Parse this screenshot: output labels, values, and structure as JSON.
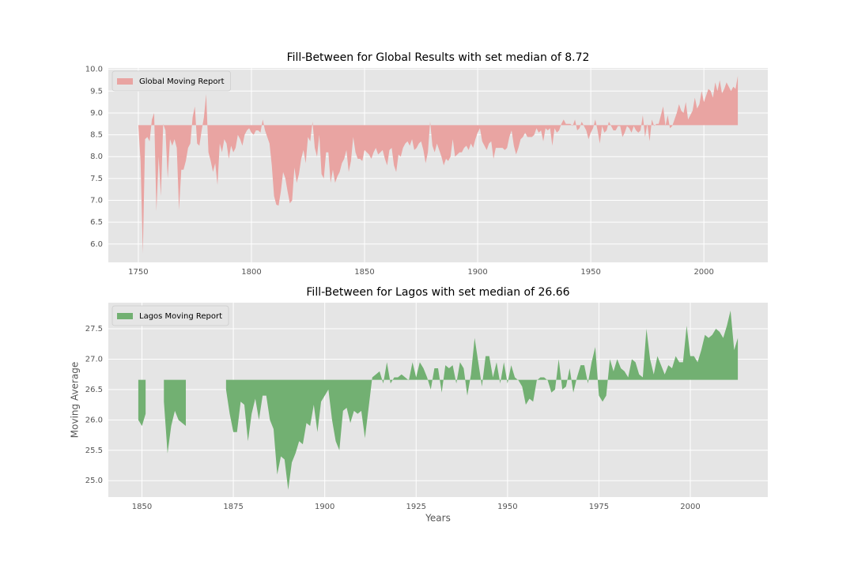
{
  "chart_data": [
    {
      "type": "area",
      "title": "Fill-Between for Global Results with set median of 8.72",
      "median": 8.72,
      "x": [
        1750,
        1751,
        1752,
        1753,
        1754,
        1755,
        1756,
        1757,
        1758,
        1759,
        1760,
        1761,
        1762,
        1763,
        1764,
        1765,
        1766,
        1767,
        1768,
        1769,
        1770,
        1771,
        1772,
        1773,
        1774,
        1775,
        1776,
        1777,
        1778,
        1779,
        1780,
        1781,
        1782,
        1783,
        1784,
        1785,
        1786,
        1787,
        1788,
        1789,
        1790,
        1791,
        1792,
        1793,
        1794,
        1795,
        1796,
        1797,
        1798,
        1799,
        1800,
        1801,
        1802,
        1803,
        1804,
        1805,
        1806,
        1807,
        1808,
        1809,
        1810,
        1811,
        1812,
        1813,
        1814,
        1815,
        1816,
        1817,
        1818,
        1819,
        1820,
        1821,
        1822,
        1823,
        1824,
        1825,
        1826,
        1827,
        1828,
        1829,
        1830,
        1831,
        1832,
        1833,
        1834,
        1835,
        1836,
        1837,
        1838,
        1839,
        1840,
        1841,
        1842,
        1843,
        1844,
        1845,
        1846,
        1847,
        1848,
        1849,
        1850,
        1851,
        1852,
        1853,
        1854,
        1855,
        1856,
        1857,
        1858,
        1859,
        1860,
        1861,
        1862,
        1863,
        1864,
        1865,
        1866,
        1867,
        1868,
        1869,
        1870,
        1871,
        1872,
        1873,
        1874,
        1875,
        1876,
        1877,
        1878,
        1879,
        1880,
        1881,
        1882,
        1883,
        1884,
        1885,
        1886,
        1887,
        1888,
        1889,
        1890,
        1891,
        1892,
        1893,
        1894,
        1895,
        1896,
        1897,
        1898,
        1899,
        1900,
        1901,
        1902,
        1903,
        1904,
        1905,
        1906,
        1907,
        1908,
        1909,
        1910,
        1911,
        1912,
        1913,
        1914,
        1915,
        1916,
        1917,
        1918,
        1919,
        1920,
        1921,
        1922,
        1923,
        1924,
        1925,
        1926,
        1927,
        1928,
        1929,
        1930,
        1931,
        1932,
        1933,
        1934,
        1935,
        1936,
        1937,
        1938,
        1939,
        1940,
        1941,
        1942,
        1943,
        1944,
        1945,
        1946,
        1947,
        1948,
        1949,
        1950,
        1951,
        1952,
        1953,
        1954,
        1955,
        1956,
        1957,
        1958,
        1959,
        1960,
        1961,
        1962,
        1963,
        1964,
        1965,
        1966,
        1967,
        1968,
        1969,
        1970,
        1971,
        1972,
        1973,
        1974,
        1975,
        1976,
        1977,
        1978,
        1979,
        1980,
        1981,
        1982,
        1983,
        1984,
        1985,
        1986,
        1987,
        1988,
        1989,
        1990,
        1991,
        1992,
        1993,
        1994,
        1995,
        1996,
        1997,
        1998,
        1999,
        2000,
        2001,
        2002,
        2003,
        2004,
        2005,
        2006,
        2007,
        2008,
        2009,
        2010,
        2011,
        2012,
        2013,
        2014,
        2015
      ],
      "series": [
        {
          "name": "Global Moving Report",
          "color": "#e9a4a2",
          "values": [
            8.72,
            7.9,
            5.78,
            8.4,
            8.45,
            8.35,
            8.85,
            9.0,
            6.75,
            8.0,
            7.1,
            8.75,
            8.6,
            7.5,
            8.4,
            8.25,
            8.4,
            8.2,
            6.78,
            7.7,
            7.7,
            7.9,
            8.2,
            8.3,
            8.9,
            9.15,
            8.3,
            8.25,
            8.6,
            8.9,
            9.43,
            8.1,
            7.9,
            7.65,
            7.85,
            7.35,
            8.3,
            8.1,
            8.4,
            8.3,
            7.95,
            8.25,
            8.1,
            8.2,
            8.5,
            8.4,
            8.25,
            8.5,
            8.6,
            8.65,
            8.55,
            8.5,
            8.6,
            8.6,
            8.55,
            8.85,
            8.6,
            8.45,
            8.3,
            7.8,
            7.1,
            6.9,
            6.88,
            7.2,
            7.65,
            7.5,
            7.2,
            6.93,
            7.0,
            7.75,
            7.4,
            7.6,
            7.95,
            8.15,
            7.85,
            8.45,
            8.35,
            8.8,
            8.2,
            8.0,
            8.5,
            7.6,
            7.5,
            8.1,
            8.1,
            7.4,
            7.7,
            7.4,
            7.55,
            7.65,
            7.85,
            7.95,
            8.15,
            7.65,
            7.9,
            8.45,
            8.1,
            7.95,
            7.95,
            7.9,
            8.15,
            8.1,
            8.05,
            7.95,
            8.1,
            8.2,
            8.05,
            8.1,
            8.15,
            7.95,
            7.8,
            8.15,
            8.2,
            7.8,
            7.65,
            8.05,
            8.0,
            8.2,
            8.3,
            8.35,
            8.25,
            8.4,
            8.15,
            8.2,
            8.3,
            8.35,
            8.15,
            7.85,
            8.1,
            8.8,
            8.25,
            8.1,
            8.3,
            8.15,
            8.0,
            7.8,
            7.95,
            7.9,
            8.0,
            8.4,
            8.0,
            8.05,
            8.1,
            8.1,
            8.2,
            8.25,
            8.15,
            8.3,
            8.2,
            8.4,
            8.55,
            8.65,
            8.35,
            8.25,
            8.15,
            8.3,
            8.35,
            7.95,
            8.2,
            8.2,
            8.2,
            8.2,
            8.15,
            8.2,
            8.45,
            8.6,
            8.25,
            8.05,
            8.2,
            8.4,
            8.45,
            8.55,
            8.45,
            8.45,
            8.45,
            8.5,
            8.65,
            8.55,
            8.6,
            8.35,
            8.65,
            8.6,
            8.65,
            8.25,
            8.65,
            8.55,
            8.6,
            8.75,
            8.85,
            8.75,
            8.75,
            8.75,
            8.7,
            8.85,
            8.6,
            8.65,
            8.8,
            8.7,
            8.6,
            8.4,
            8.55,
            8.65,
            8.85,
            8.6,
            8.3,
            8.7,
            8.55,
            8.6,
            8.8,
            8.7,
            8.6,
            8.6,
            8.7,
            8.7,
            8.45,
            8.55,
            8.7,
            8.65,
            8.55,
            8.7,
            8.6,
            8.55,
            8.6,
            8.95,
            8.45,
            8.75,
            8.35,
            8.85,
            8.7,
            8.75,
            8.75,
            8.95,
            9.15,
            8.7,
            8.95,
            8.65,
            8.7,
            8.85,
            9.0,
            9.2,
            9.05,
            9.0,
            9.25,
            8.85,
            8.95,
            9.05,
            9.35,
            9.1,
            9.2,
            9.5,
            9.25,
            9.4,
            9.55,
            9.5,
            9.35,
            9.7,
            9.5,
            9.75,
            9.45,
            9.55,
            9.7,
            9.6,
            9.5,
            9.6,
            9.55,
            9.85
          ]
        }
      ],
      "xlim": [
        1736.75,
        2028.25
      ],
      "xticks": [
        1750,
        1800,
        1850,
        1900,
        1950,
        2000
      ],
      "ylim": [
        5.58,
        10.03
      ],
      "yticks": [
        {
          "value": 6.0,
          "label": "6.0"
        },
        6.5,
        {
          "value": 7.0,
          "label": "7.0"
        },
        7.5,
        {
          "value": 8.0,
          "label": "8.0"
        },
        8.5,
        {
          "value": 9.0,
          "label": "9.0"
        },
        9.5,
        {
          "value": 10.0,
          "label": "10.0"
        }
      ],
      "grid": true,
      "legend": "upper left"
    },
    {
      "type": "area",
      "title": "Fill-Between for Lagos with set median of 26.66",
      "median": 26.66,
      "x_label": "Years",
      "y_label": "Moving Average",
      "x": [
        1849,
        1850,
        1851,
        1852,
        1853,
        1854,
        1855,
        1856,
        1857,
        1858,
        1859,
        1860,
        1861,
        1862,
        1863,
        1864,
        1865,
        1866,
        1867,
        1868,
        1869,
        1870,
        1871,
        1872,
        1873,
        1874,
        1875,
        1876,
        1877,
        1878,
        1879,
        1880,
        1881,
        1882,
        1883,
        1884,
        1885,
        1886,
        1887,
        1888,
        1889,
        1890,
        1891,
        1892,
        1893,
        1894,
        1895,
        1896,
        1897,
        1898,
        1899,
        1900,
        1901,
        1902,
        1903,
        1904,
        1905,
        1906,
        1907,
        1908,
        1909,
        1910,
        1911,
        1912,
        1913,
        1914,
        1915,
        1916,
        1917,
        1918,
        1919,
        1920,
        1921,
        1922,
        1923,
        1924,
        1925,
        1926,
        1927,
        1928,
        1929,
        1930,
        1931,
        1932,
        1933,
        1934,
        1935,
        1936,
        1937,
        1938,
        1939,
        1940,
        1941,
        1942,
        1943,
        1944,
        1945,
        1946,
        1947,
        1948,
        1949,
        1950,
        1951,
        1952,
        1953,
        1954,
        1955,
        1956,
        1957,
        1958,
        1959,
        1960,
        1961,
        1962,
        1963,
        1964,
        1965,
        1966,
        1967,
        1968,
        1969,
        1970,
        1971,
        1972,
        1973,
        1974,
        1975,
        1976,
        1977,
        1978,
        1979,
        1980,
        1981,
        1982,
        1983,
        1984,
        1985,
        1986,
        1987,
        1988,
        1989,
        1990,
        1991,
        1992,
        1993,
        1994,
        1995,
        1996,
        1997,
        1998,
        1999,
        2000,
        2001,
        2002,
        2003,
        2004,
        2005,
        2006,
        2007,
        2008,
        2009,
        2010,
        2011,
        2012,
        2013
      ],
      "series": [
        {
          "name": "Lagos Moving Report",
          "color": "#72b072",
          "values": [
            26.0,
            25.9,
            26.1,
            null,
            null,
            null,
            null,
            26.3,
            25.45,
            25.9,
            26.15,
            26.0,
            25.95,
            25.9,
            null,
            null,
            null,
            null,
            null,
            null,
            null,
            null,
            null,
            null,
            26.5,
            26.1,
            25.8,
            25.8,
            26.3,
            26.25,
            25.65,
            26.1,
            26.35,
            26.0,
            26.4,
            26.4,
            26.0,
            25.85,
            25.1,
            25.4,
            25.35,
            24.85,
            25.3,
            25.45,
            25.65,
            25.6,
            25.95,
            25.9,
            26.25,
            25.8,
            26.3,
            26.4,
            26.5,
            26.0,
            25.65,
            25.5,
            26.15,
            26.2,
            25.95,
            26.15,
            26.1,
            26.15,
            25.7,
            26.2,
            26.7,
            26.75,
            26.8,
            26.6,
            26.95,
            26.6,
            26.7,
            26.7,
            26.75,
            26.7,
            26.65,
            26.95,
            26.7,
            26.95,
            26.85,
            26.7,
            26.5,
            26.85,
            26.85,
            26.45,
            26.9,
            26.85,
            26.9,
            26.6,
            26.95,
            26.85,
            26.4,
            26.75,
            27.35,
            26.95,
            26.55,
            27.05,
            27.05,
            26.7,
            26.95,
            26.6,
            26.95,
            26.6,
            26.9,
            26.7,
            26.65,
            26.55,
            26.25,
            26.35,
            26.3,
            26.65,
            26.7,
            26.7,
            26.65,
            26.45,
            26.5,
            27.0,
            26.5,
            26.55,
            26.85,
            26.45,
            26.7,
            26.9,
            26.9,
            26.6,
            26.95,
            27.2,
            26.4,
            26.3,
            26.4,
            27.0,
            26.8,
            27.0,
            26.85,
            26.8,
            26.7,
            27.0,
            26.95,
            26.75,
            26.7,
            27.5,
            27.0,
            26.75,
            27.05,
            26.9,
            26.75,
            26.9,
            26.85,
            27.05,
            26.95,
            26.95,
            27.55,
            27.05,
            27.05,
            26.95,
            27.15,
            27.4,
            27.35,
            27.4,
            27.5,
            27.45,
            27.35,
            27.55,
            27.8,
            27.15,
            27.35
          ]
        }
      ],
      "xlim": [
        1840.8,
        2021.2
      ],
      "xticks": [
        1850,
        1875,
        1900,
        1925,
        1950,
        1975,
        2000
      ],
      "ylim": [
        24.73,
        27.93
      ],
      "yticks": [
        {
          "value": 25.0,
          "label": "25.0"
        },
        25.5,
        {
          "value": 26.0,
          "label": "26.0"
        },
        26.5,
        {
          "value": 27.0,
          "label": "27.0"
        },
        27.5
      ],
      "grid": true,
      "legend": "upper left"
    }
  ]
}
